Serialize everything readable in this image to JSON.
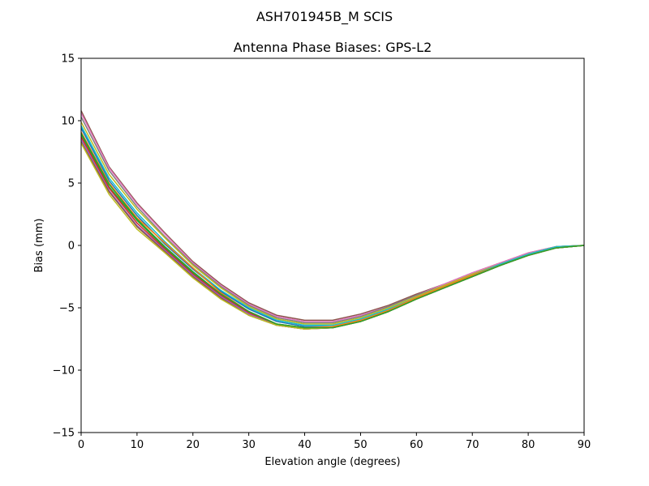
{
  "figure": {
    "suptitle": "ASH701945B_M    SCIS"
  },
  "chart_data": {
    "type": "line",
    "title": "Antenna Phase Biases: GPS-L2",
    "xlabel": "Elevation angle (degrees)",
    "ylabel": "Bias (mm)",
    "xlim": [
      0,
      90
    ],
    "ylim": [
      -15,
      15
    ],
    "xticks": [
      0,
      10,
      20,
      30,
      40,
      50,
      60,
      70,
      80,
      90
    ],
    "yticks": [
      -15,
      -10,
      -5,
      0,
      5,
      10,
      15
    ],
    "xtick_labels": [
      "0",
      "10",
      "20",
      "30",
      "40",
      "50",
      "60",
      "70",
      "80",
      "90"
    ],
    "ytick_labels": [
      "−15",
      "−10",
      "−5",
      "0",
      "5",
      "10",
      "15"
    ],
    "grid": false,
    "legend": "none",
    "x": [
      0,
      5,
      10,
      15,
      20,
      25,
      30,
      35,
      40,
      45,
      50,
      55,
      60,
      65,
      70,
      75,
      80,
      85,
      90
    ],
    "series": [
      {
        "color": "#8c564b",
        "values": [
          10.8,
          6.3,
          3.4,
          1.0,
          -1.3,
          -3.1,
          -4.6,
          -5.6,
          -6.0,
          -6.0,
          -5.5,
          -4.8,
          -3.9,
          -3.1,
          -2.2,
          -1.4,
          -0.6,
          -0.1,
          0.0
        ]
      },
      {
        "color": "#e377c2",
        "values": [
          10.6,
          6.2,
          3.3,
          0.9,
          -1.4,
          -3.2,
          -4.7,
          -5.7,
          -6.1,
          -6.1,
          -5.6,
          -4.9,
          -4.0,
          -3.1,
          -2.2,
          -1.4,
          -0.6,
          -0.1,
          0.0
        ]
      },
      {
        "color": "#7f7f7f",
        "values": [
          10.3,
          6.0,
          3.1,
          0.7,
          -1.5,
          -3.3,
          -4.8,
          -5.8,
          -6.2,
          -6.2,
          -5.7,
          -4.9,
          -4.0,
          -3.2,
          -2.3,
          -1.5,
          -0.7,
          -0.1,
          0.0
        ]
      },
      {
        "color": "#bcbd22",
        "values": [
          9.9,
          5.7,
          2.9,
          0.6,
          -1.6,
          -3.4,
          -4.9,
          -5.9,
          -6.3,
          -6.3,
          -5.8,
          -5.0,
          -4.1,
          -3.2,
          -2.3,
          -1.5,
          -0.7,
          -0.1,
          0.0
        ]
      },
      {
        "color": "#17becf",
        "values": [
          9.6,
          5.4,
          2.6,
          0.3,
          -1.8,
          -3.6,
          -5.0,
          -6.0,
          -6.4,
          -6.4,
          -5.9,
          -5.1,
          -4.2,
          -3.3,
          -2.4,
          -1.5,
          -0.7,
          -0.1,
          0.0
        ]
      },
      {
        "color": "#1f77b4",
        "values": [
          9.4,
          5.2,
          2.4,
          0.1,
          -1.9,
          -3.7,
          -5.1,
          -6.1,
          -6.5,
          -6.5,
          -6.0,
          -5.2,
          -4.2,
          -3.3,
          -2.4,
          -1.6,
          -0.8,
          -0.2,
          0.0
        ]
      },
      {
        "color": "#ff7f0e",
        "values": [
          9.1,
          5.0,
          2.2,
          0.2,
          -1.8,
          -3.8,
          -5.3,
          -6.3,
          -6.6,
          -6.5,
          -6.0,
          -5.2,
          -4.2,
          -3.3,
          -2.4,
          -1.6,
          -0.8,
          -0.2,
          0.0
        ]
      },
      {
        "color": "#2ca02c",
        "values": [
          8.9,
          4.7,
          2.0,
          -0.2,
          -2.2,
          -3.9,
          -5.3,
          -6.3,
          -6.6,
          -6.6,
          -6.1,
          -5.3,
          -4.3,
          -3.4,
          -2.5,
          -1.6,
          -0.8,
          -0.2,
          0.0
        ]
      },
      {
        "color": "#d62728",
        "values": [
          8.7,
          4.6,
          1.8,
          -0.3,
          -2.3,
          -4.0,
          -5.4,
          -6.4,
          -6.7,
          -6.6,
          -6.1,
          -5.3,
          -4.3,
          -3.4,
          -2.5,
          -1.6,
          -0.8,
          -0.2,
          0.0
        ]
      },
      {
        "color": "#9467bd",
        "values": [
          8.5,
          4.4,
          1.6,
          -0.4,
          -2.4,
          -4.1,
          -5.5,
          -6.4,
          -6.7,
          -6.6,
          -6.1,
          -5.3,
          -4.3,
          -3.4,
          -2.5,
          -1.6,
          -0.8,
          -0.2,
          0.0
        ]
      },
      {
        "color": "#8c564b",
        "values": [
          8.3,
          4.3,
          1.5,
          -0.5,
          -2.5,
          -4.2,
          -5.6,
          -6.4,
          -6.7,
          -6.6,
          -6.1,
          -5.3,
          -4.3,
          -3.4,
          -2.5,
          -1.6,
          -0.8,
          -0.2,
          0.0
        ]
      },
      {
        "color": "#bcbd22",
        "values": [
          8.2,
          4.1,
          1.3,
          -0.6,
          -2.6,
          -4.3,
          -5.6,
          -6.4,
          -6.7,
          -6.6,
          -6.1,
          -5.3,
          -4.3,
          -3.4,
          -2.5,
          -1.6,
          -0.8,
          -0.2,
          0.0
        ]
      },
      {
        "color": "#2ca02c",
        "values": [
          9.0,
          4.9,
          2.1,
          -0.1,
          -2.1,
          -3.9,
          -5.3,
          -6.3,
          -6.6,
          -6.6,
          -6.1,
          -5.3,
          -4.3,
          -3.4,
          -2.5,
          -1.6,
          -0.8,
          -0.2,
          0.0
        ]
      }
    ]
  }
}
